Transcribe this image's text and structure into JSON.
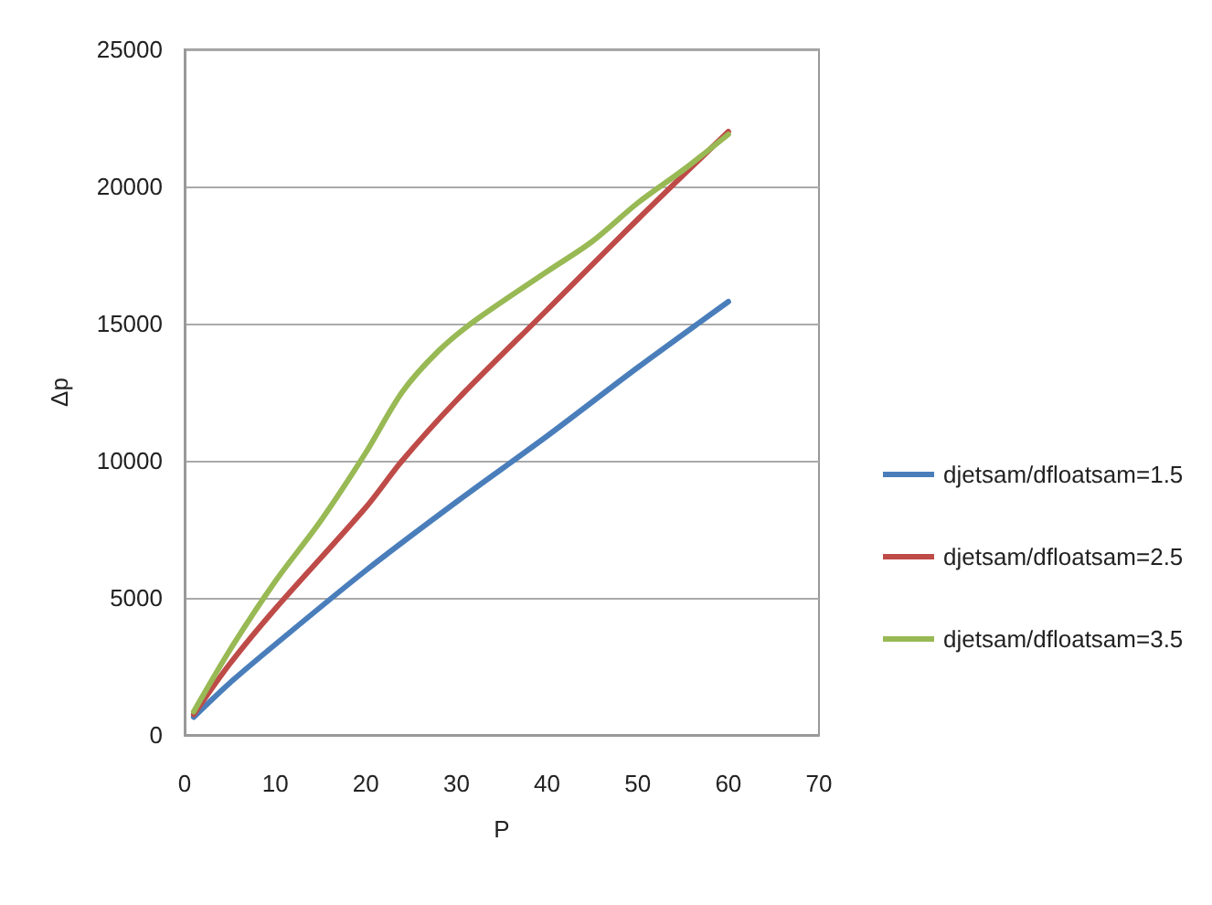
{
  "chart_data": {
    "type": "line",
    "xlabel": "P",
    "ylabel": "Δp",
    "xlim": [
      0,
      70
    ],
    "xticks": [
      0,
      10,
      20,
      30,
      40,
      50,
      60,
      70
    ],
    "ylim": [
      0,
      25000
    ],
    "yticks": [
      0,
      5000,
      10000,
      15000,
      20000,
      25000
    ],
    "grid": "y",
    "legend": "right",
    "marker": "none",
    "line_style": "solid",
    "series": [
      {
        "name": "djetsam/dfloatsam=1.5",
        "color": "#4a7ebb",
        "x": [
          1,
          5,
          10,
          20,
          30,
          40,
          50,
          60
        ],
        "values": [
          650,
          1900,
          3300,
          6000,
          8500,
          10900,
          13400,
          15800
        ]
      },
      {
        "name": "djetsam/dfloatsam=2.5",
        "color": "#be4b48",
        "x": [
          1,
          5,
          10,
          20,
          24,
          30,
          40,
          50,
          60
        ],
        "values": [
          750,
          2600,
          4600,
          8300,
          10000,
          12200,
          15500,
          18800,
          22000
        ]
      },
      {
        "name": "djetsam/dfloatsam=3.5",
        "color": "#98b954",
        "x": [
          1,
          5,
          10,
          15,
          20,
          24,
          28,
          32,
          40,
          45,
          50,
          55,
          60
        ],
        "values": [
          850,
          3100,
          5600,
          7800,
          10300,
          12500,
          14000,
          15100,
          16900,
          18000,
          19400,
          20600,
          21900
        ]
      }
    ]
  }
}
